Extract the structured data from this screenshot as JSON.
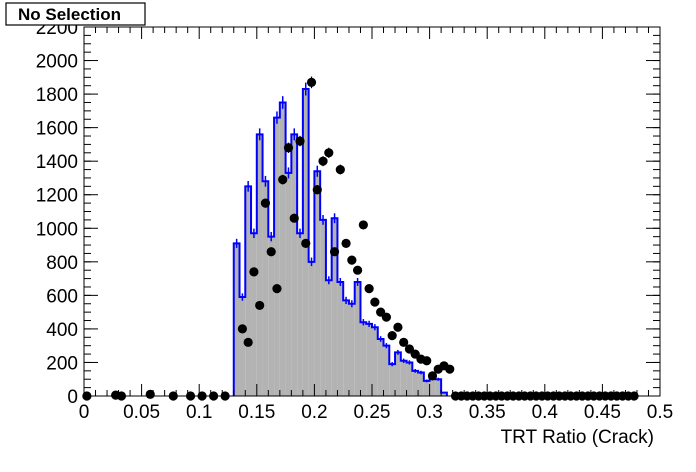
{
  "chart_data": {
    "type": "bar",
    "title": "No Selection",
    "xlabel": "TRT Ratio (Crack)",
    "ylabel": "",
    "xlim": [
      0,
      0.5
    ],
    "ylim": [
      0,
      2200
    ],
    "bin_width": 0.01,
    "xticks": [
      0,
      0.05,
      0.1,
      0.15,
      0.2,
      0.25,
      0.3,
      0.35,
      0.4,
      0.45,
      0.5
    ],
    "xtick_labels": [
      "0",
      "0.05",
      "0.1",
      "0.15",
      "0.2",
      "0.25",
      "0.3",
      "0.35",
      "0.4",
      "0.45",
      "0.5"
    ],
    "yticks": [
      0,
      200,
      400,
      600,
      800,
      1000,
      1200,
      1400,
      1600,
      1800,
      2000,
      2200
    ],
    "ytick_labels": [
      "0",
      "200",
      "400",
      "600",
      "800",
      "1000",
      "1200",
      "1400",
      "1600",
      "1800",
      "2000",
      "2200"
    ],
    "grid": false,
    "colors": {
      "histogram_fill": "#b3b3b3",
      "histogram_line": "#0000ff",
      "points": "#000000"
    },
    "histogram": {
      "x_start": 0.13,
      "bin_width": 0.005,
      "values": [
        910,
        590,
        1250,
        970,
        1560,
        1280,
        950,
        1660,
        1750,
        1330,
        1560,
        970,
        1830,
        800,
        1340,
        1050,
        690,
        1060,
        680,
        570,
        550,
        680,
        440,
        430,
        410,
        340,
        300,
        190,
        260,
        210,
        200,
        150,
        140,
        90,
        110,
        100,
        20
      ]
    },
    "points": {
      "x": [
        0.0025,
        0.0275,
        0.0325,
        0.0575,
        0.0775,
        0.0925,
        0.1025,
        0.1125,
        0.1225,
        0.1375,
        0.1425,
        0.1475,
        0.1525,
        0.1575,
        0.1625,
        0.1675,
        0.1725,
        0.1775,
        0.1825,
        0.1875,
        0.1925,
        0.1975,
        0.2025,
        0.2075,
        0.2125,
        0.2175,
        0.2225,
        0.2275,
        0.2325,
        0.2375,
        0.2425,
        0.2475,
        0.2525,
        0.2575,
        0.2625,
        0.2675,
        0.2725,
        0.2775,
        0.2825,
        0.2875,
        0.2925,
        0.2975,
        0.3025,
        0.3075,
        0.3125,
        0.3175,
        0.3225,
        0.3275,
        0.3325,
        0.3375,
        0.3425,
        0.3475,
        0.3525,
        0.3575,
        0.3625,
        0.3675,
        0.3725,
        0.3775,
        0.3825,
        0.3875,
        0.3925,
        0.3975,
        0.4025,
        0.4075,
        0.4125,
        0.4175,
        0.4225,
        0.4275,
        0.4325,
        0.4375,
        0.4425,
        0.4475,
        0.4525,
        0.4575,
        0.4625,
        0.4675,
        0.4725,
        0.4775
      ],
      "y": [
        0,
        5,
        0,
        10,
        0,
        0,
        0,
        0,
        0,
        400,
        320,
        740,
        540,
        1150,
        860,
        640,
        1290,
        1480,
        1060,
        1520,
        910,
        1870,
        1230,
        1400,
        1450,
        860,
        1350,
        910,
        810,
        750,
        1020,
        640,
        560,
        500,
        470,
        360,
        410,
        320,
        280,
        250,
        220,
        210,
        120,
        160,
        180,
        160,
        0,
        0,
        0,
        0,
        0,
        0,
        0,
        0,
        0,
        0,
        0,
        0,
        0,
        0,
        0,
        0,
        0,
        0,
        0,
        0,
        0,
        0,
        0,
        0,
        0,
        0,
        0,
        0,
        0,
        0,
        0,
        0
      ]
    }
  }
}
